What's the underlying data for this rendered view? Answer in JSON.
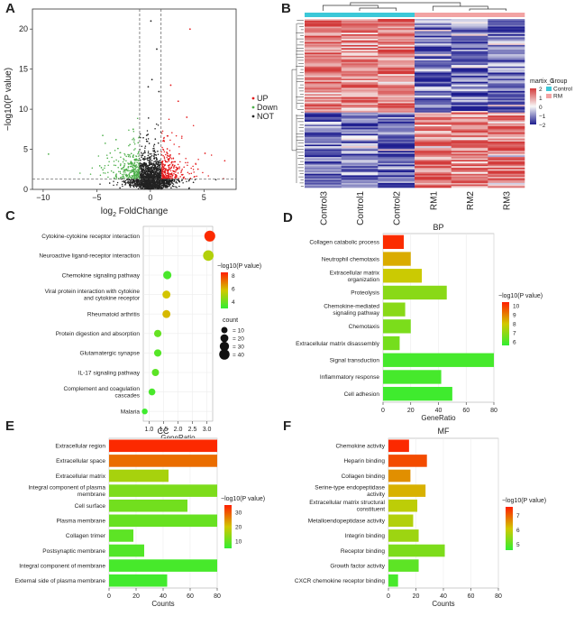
{
  "figure": {
    "panel_letters": [
      "A",
      "B",
      "C",
      "D",
      "E",
      "F"
    ]
  },
  "chart_data": [
    {
      "panel": "A",
      "type": "scatter",
      "title": "",
      "xlabel_main": "log",
      "xlabel_sub": "2",
      "xlabel_rest": " FoldChange",
      "ylabel": "−log10(P value)",
      "xlim": [
        -11,
        8
      ],
      "ylim": [
        0,
        22.5
      ],
      "xticks": [
        -10,
        -5,
        0,
        5
      ],
      "yticks": [
        0,
        5,
        10,
        15,
        20
      ],
      "thresholds": {
        "fc": 1,
        "p_line": 1.3
      },
      "legend": [
        {
          "label": "UP",
          "color": "#e41a1c"
        },
        {
          "label": "Down",
          "color": "#4daf4a"
        },
        {
          "label": "NOT",
          "color": "#222222"
        }
      ],
      "highlight_points": [
        {
          "x": 0.05,
          "y": 21.0,
          "cls": "NOT"
        },
        {
          "x": 3.7,
          "y": 20.0,
          "cls": "UP"
        },
        {
          "x": 0.6,
          "y": 17.5,
          "cls": "NOT"
        },
        {
          "x": 1.9,
          "y": 13.0,
          "cls": "UP"
        },
        {
          "x": 0.15,
          "y": 13.7,
          "cls": "NOT"
        },
        {
          "x": -0.2,
          "y": 12.8,
          "cls": "NOT"
        },
        {
          "x": 0.8,
          "y": 12.2,
          "cls": "NOT"
        },
        {
          "x": 2.6,
          "y": 11.0,
          "cls": "UP"
        },
        {
          "x": -3.2,
          "y": 6.2,
          "cls": "Down"
        },
        {
          "x": -9.5,
          "y": 4.4,
          "cls": "Down"
        },
        {
          "x": 5.1,
          "y": 4.5,
          "cls": "UP"
        },
        {
          "x": 3.4,
          "y": 9.0,
          "cls": "UP"
        },
        {
          "x": -1.6,
          "y": 7.5,
          "cls": "Down"
        }
      ]
    },
    {
      "panel": "B",
      "type": "heatmap",
      "columns": [
        "Control3",
        "Control1",
        "Control2",
        "RM1",
        "RM2",
        "RM3"
      ],
      "groups": [
        "Control",
        "Control",
        "Control",
        "RM",
        "RM",
        "RM"
      ],
      "legend_title": "martix_1",
      "scale_ticks": [
        "2",
        "1",
        "0",
        "−1",
        "−2"
      ],
      "group_title": "Group",
      "group_legend": [
        {
          "label": "Control",
          "color": "#3cc8d8"
        },
        {
          "label": "RM",
          "color": "#f2a3a3"
        }
      ]
    },
    {
      "panel": "C",
      "type": "bubble",
      "xlabel": "GeneRatio",
      "xlim": [
        0.8,
        3.2
      ],
      "xticks": [
        "1.0",
        "1.5",
        "2.0",
        "2.5",
        "3.0"
      ],
      "xtick_values": [
        1.0,
        1.5,
        2.0,
        2.5,
        3.0
      ],
      "color_title": "−log10(P value)",
      "color_ticks": [
        8,
        6,
        4
      ],
      "color_range": [
        3,
        8.5
      ],
      "size_title": "count",
      "size_ticks": [
        10,
        20,
        30,
        40
      ],
      "terms": [
        {
          "label": "Cytokine-cytokine receptor interaction",
          "ratio": 3.1,
          "logp": 8.3,
          "count": 45
        },
        {
          "label": "Neuroactive ligand-receptor interaction",
          "ratio": 3.05,
          "logp": 5.2,
          "count": 42
        },
        {
          "label": "Chemokine signaling pathway",
          "ratio": 1.63,
          "logp": 3.4,
          "count": 22
        },
        {
          "label": "Viral protein interaction with cytokine|and cytokine receptor",
          "ratio": 1.6,
          "logp": 5.8,
          "count": 20
        },
        {
          "label": "Rheumatoid arthritis",
          "ratio": 1.6,
          "logp": 6.0,
          "count": 20
        },
        {
          "label": "Protein digestion and absorption",
          "ratio": 1.3,
          "logp": 3.9,
          "count": 16
        },
        {
          "label": "Glutamatergic synapse",
          "ratio": 1.3,
          "logp": 3.6,
          "count": 16
        },
        {
          "label": "IL-17 signaling pathway",
          "ratio": 1.22,
          "logp": 3.7,
          "count": 15
        },
        {
          "label": "Complement and coagulation|cascades",
          "ratio": 1.1,
          "logp": 3.4,
          "count": 13
        },
        {
          "label": "Malaria",
          "ratio": 0.85,
          "logp": 3.2,
          "count": 8
        }
      ]
    },
    {
      "panel": "D",
      "type": "bar",
      "title": "BP",
      "xlabel": "GeneRatio",
      "xlim": [
        0,
        80
      ],
      "xticks": [
        0,
        20,
        40,
        60,
        80
      ],
      "color_title": "−log10(P value)",
      "color_ticks": [
        10,
        9,
        8,
        7,
        6
      ],
      "color_range": [
        5.6,
        10.4
      ],
      "bars": [
        {
          "label": "Collagen catabolic process",
          "value": 15,
          "logp": 10.2
        },
        {
          "label": "Neutrophil chemotaxis",
          "value": 20,
          "logp": 8.4
        },
        {
          "label": "Extracellular matrix|organization",
          "value": 28,
          "logp": 7.9
        },
        {
          "label": "Proteolysis",
          "value": 46,
          "logp": 6.9
        },
        {
          "label": "Chemokine-mediated|signaling pathway",
          "value": 16,
          "logp": 6.9
        },
        {
          "label": "Chemotaxis",
          "value": 20,
          "logp": 6.7
        },
        {
          "label": "Extracellular matrix disassembly",
          "value": 12,
          "logp": 6.6
        },
        {
          "label": "Signal transduction",
          "value": 80,
          "logp": 5.9
        },
        {
          "label": "Inflammatory response",
          "value": 42,
          "logp": 5.9
        },
        {
          "label": "Cell adhesion",
          "value": 50,
          "logp": 5.8
        }
      ]
    },
    {
      "panel": "E",
      "type": "bar",
      "title": "CC",
      "xlabel": "Counts",
      "xlim": [
        0,
        80
      ],
      "xticks": [
        0,
        20,
        40,
        60,
        80
      ],
      "color_title": "−log10(P value)",
      "color_ticks": [
        30,
        20,
        10
      ],
      "color_range": [
        5,
        35
      ],
      "bars": [
        {
          "label": "Extracellular region",
          "value": 80,
          "logp": 34
        },
        {
          "label": "Extracellular space",
          "value": 80,
          "logp": 28
        },
        {
          "label": "Extracellular matrix",
          "value": 44,
          "logp": 16
        },
        {
          "label": "Integral component of plasma|membrane",
          "value": 80,
          "logp": 12
        },
        {
          "label": "Cell surface",
          "value": 58,
          "logp": 11
        },
        {
          "label": "Plasma membrane",
          "value": 80,
          "logp": 10
        },
        {
          "label": "Collagen trimer",
          "value": 18,
          "logp": 9
        },
        {
          "label": "Postsynaptic membrane",
          "value": 26,
          "logp": 8
        },
        {
          "label": "Integral component of membrane",
          "value": 80,
          "logp": 7
        },
        {
          "label": "External side of plasma membrane",
          "value": 43,
          "logp": 6.5
        }
      ]
    },
    {
      "panel": "F",
      "type": "bar",
      "title": "MF",
      "xlabel": "Counts",
      "xlim": [
        0,
        80
      ],
      "xticks": [
        0,
        20,
        40,
        60,
        80
      ],
      "color_title": "−log10(P value)",
      "color_ticks": [
        7,
        6,
        5
      ],
      "color_range": [
        4.6,
        7.6
      ],
      "bars": [
        {
          "label": "Chemokine activity",
          "value": 15,
          "logp": 7.5
        },
        {
          "label": "Heparin binding",
          "value": 28,
          "logp": 7.2
        },
        {
          "label": "Collagen binding",
          "value": 16,
          "logp": 6.6
        },
        {
          "label": "Serine-type endopeptidase|activity",
          "value": 27,
          "logp": 6.3
        },
        {
          "label": "Extracellular matrix structural|constituent",
          "value": 21,
          "logp": 5.9
        },
        {
          "label": "Metalloendopeptidase activity",
          "value": 18,
          "logp": 5.8
        },
        {
          "label": "Integrin binding",
          "value": 22,
          "logp": 5.6
        },
        {
          "label": "Receptor binding",
          "value": 41,
          "logp": 5.3
        },
        {
          "label": "Growth factor activity",
          "value": 22,
          "logp": 5.0
        },
        {
          "label": "CXCR chemokine receptor binding",
          "value": 7,
          "logp": 4.8
        }
      ]
    }
  ]
}
